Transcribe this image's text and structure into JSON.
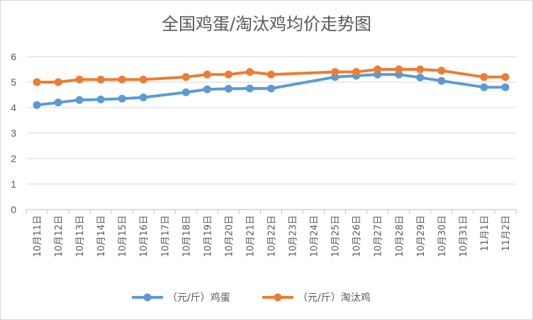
{
  "chart_data": {
    "type": "line",
    "title": "全国鸡蛋/淘汰鸡均价走势图",
    "xlabel": "",
    "ylabel": "",
    "ylim": [
      0,
      6
    ],
    "yticks": [
      "0",
      "1",
      "2",
      "3",
      "4",
      "5",
      "6"
    ],
    "grid": true,
    "legend_position": "bottom",
    "categories": [
      "10月11日",
      "10月12日",
      "10月13日",
      "10月14日",
      "10月15日",
      "10月16日",
      "10月17日",
      "10月18日",
      "10月19日",
      "10月20日",
      "10月21日",
      "10月22日",
      "10月23日",
      "10月24日",
      "10月25日",
      "10月26日",
      "10月27日",
      "10月28日",
      "10月29日",
      "10月30日",
      "10月31日",
      "11月1日",
      "11月2日"
    ],
    "series": [
      {
        "name": "（元/斤）鸡蛋",
        "color": "#5b9bd5",
        "values": [
          4.1,
          4.2,
          4.3,
          4.32,
          4.35,
          4.4,
          null,
          4.6,
          4.72,
          4.74,
          4.75,
          4.75,
          null,
          null,
          5.2,
          5.25,
          5.3,
          5.3,
          5.18,
          5.05,
          null,
          4.8,
          4.8
        ]
      },
      {
        "name": "（元/斤）淘汰鸡",
        "color": "#ed7d31",
        "values": [
          5.0,
          5.0,
          5.1,
          5.1,
          5.1,
          5.1,
          null,
          5.2,
          5.3,
          5.3,
          5.4,
          5.3,
          null,
          null,
          5.4,
          5.4,
          5.5,
          5.5,
          5.5,
          5.45,
          null,
          5.2,
          5.2
        ]
      }
    ]
  }
}
